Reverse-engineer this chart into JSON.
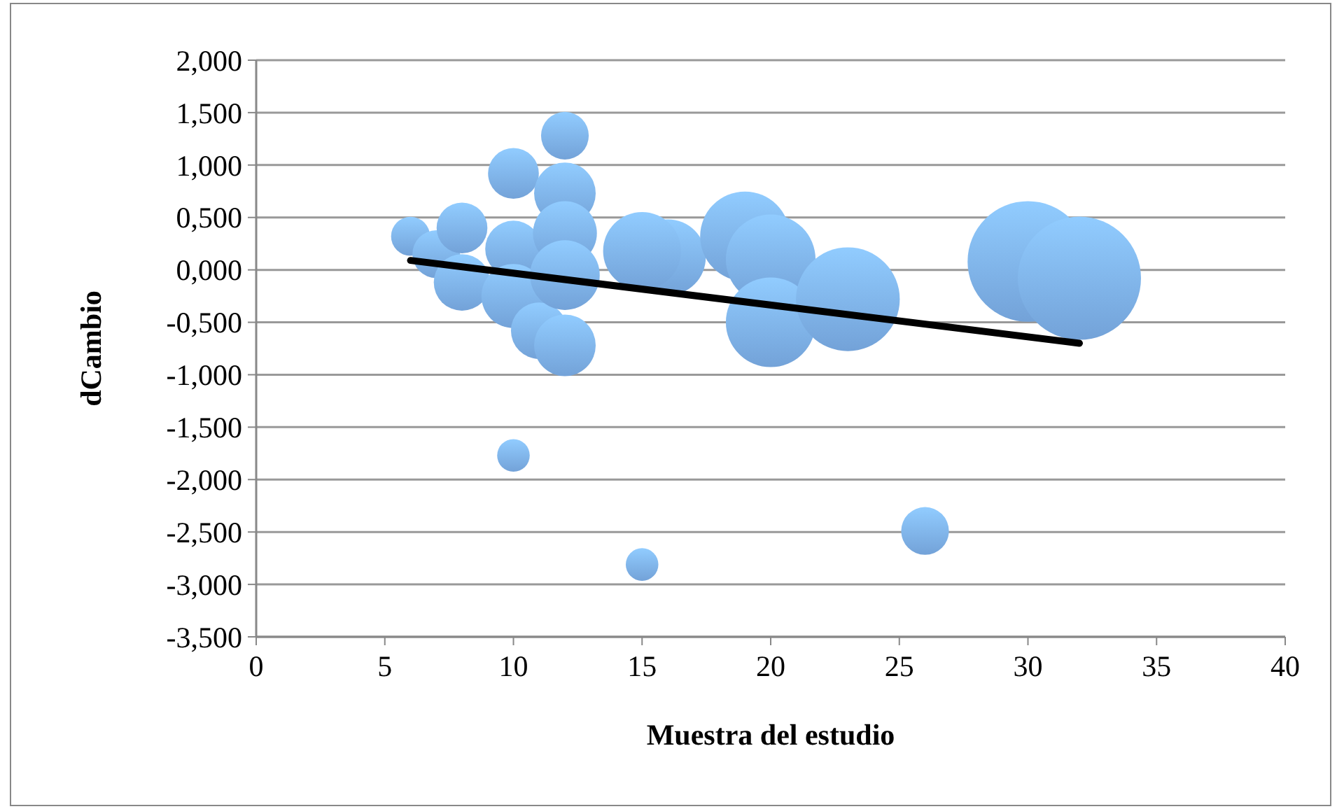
{
  "chart_data": {
    "type": "bubble",
    "xlabel": "Muestra del estudio",
    "ylabel": "dCambio",
    "xlim": [
      0,
      40
    ],
    "xticks": [
      0,
      5,
      10,
      15,
      20,
      25,
      30,
      35,
      40
    ],
    "ylim": [
      -3.5,
      2
    ],
    "yticks": [
      {
        "value": -3.5,
        "label": "-3,500"
      },
      {
        "value": -3,
        "label": "-3,000"
      },
      {
        "value": -2.5,
        "label": "-2,500"
      },
      {
        "value": -2,
        "label": "-2,000"
      },
      {
        "value": -1.5,
        "label": "-1,500"
      },
      {
        "value": -1,
        "label": "-1,000"
      },
      {
        "value": -0.5,
        "label": "-0,500"
      },
      {
        "value": 0,
        "label": "0,000"
      },
      {
        "value": 0.5,
        "label": "0,500"
      },
      {
        "value": 1,
        "label": "1,000"
      },
      {
        "value": 1.5,
        "label": "1,500"
      },
      {
        "value": 2,
        "label": "2,000"
      }
    ],
    "grid": "y",
    "series": [
      {
        "color": "#7eb1ec",
        "x": [
          6,
          7,
          8,
          8,
          10,
          10,
          10,
          11,
          12,
          12,
          12,
          12,
          12,
          10,
          15,
          16,
          15,
          19,
          20,
          20,
          23,
          26,
          30,
          32
        ],
        "values": [
          0.32,
          0.15,
          0.4,
          -0.12,
          0.92,
          0.2,
          -0.25,
          -0.58,
          1.28,
          0.73,
          0.35,
          -0.05,
          -0.72,
          -1.77,
          -2.81,
          0.12,
          0.18,
          0.32,
          0.1,
          -0.5,
          -0.28,
          -2.49,
          0.08,
          -0.08
        ],
        "sizes": [
          0.1,
          0.15,
          0.17,
          0.21,
          0.17,
          0.21,
          0.27,
          0.21,
          0.15,
          0.25,
          0.27,
          0.32,
          0.25,
          0.07,
          0.07,
          0.38,
          0.4,
          0.53,
          0.53,
          0.53,
          0.71,
          0.15,
          0.96,
          1
        ]
      },
      {
        "type": "line",
        "color": "#000000",
        "x": [
          6,
          32
        ],
        "values": [
          0.09,
          -0.7
        ]
      }
    ]
  }
}
